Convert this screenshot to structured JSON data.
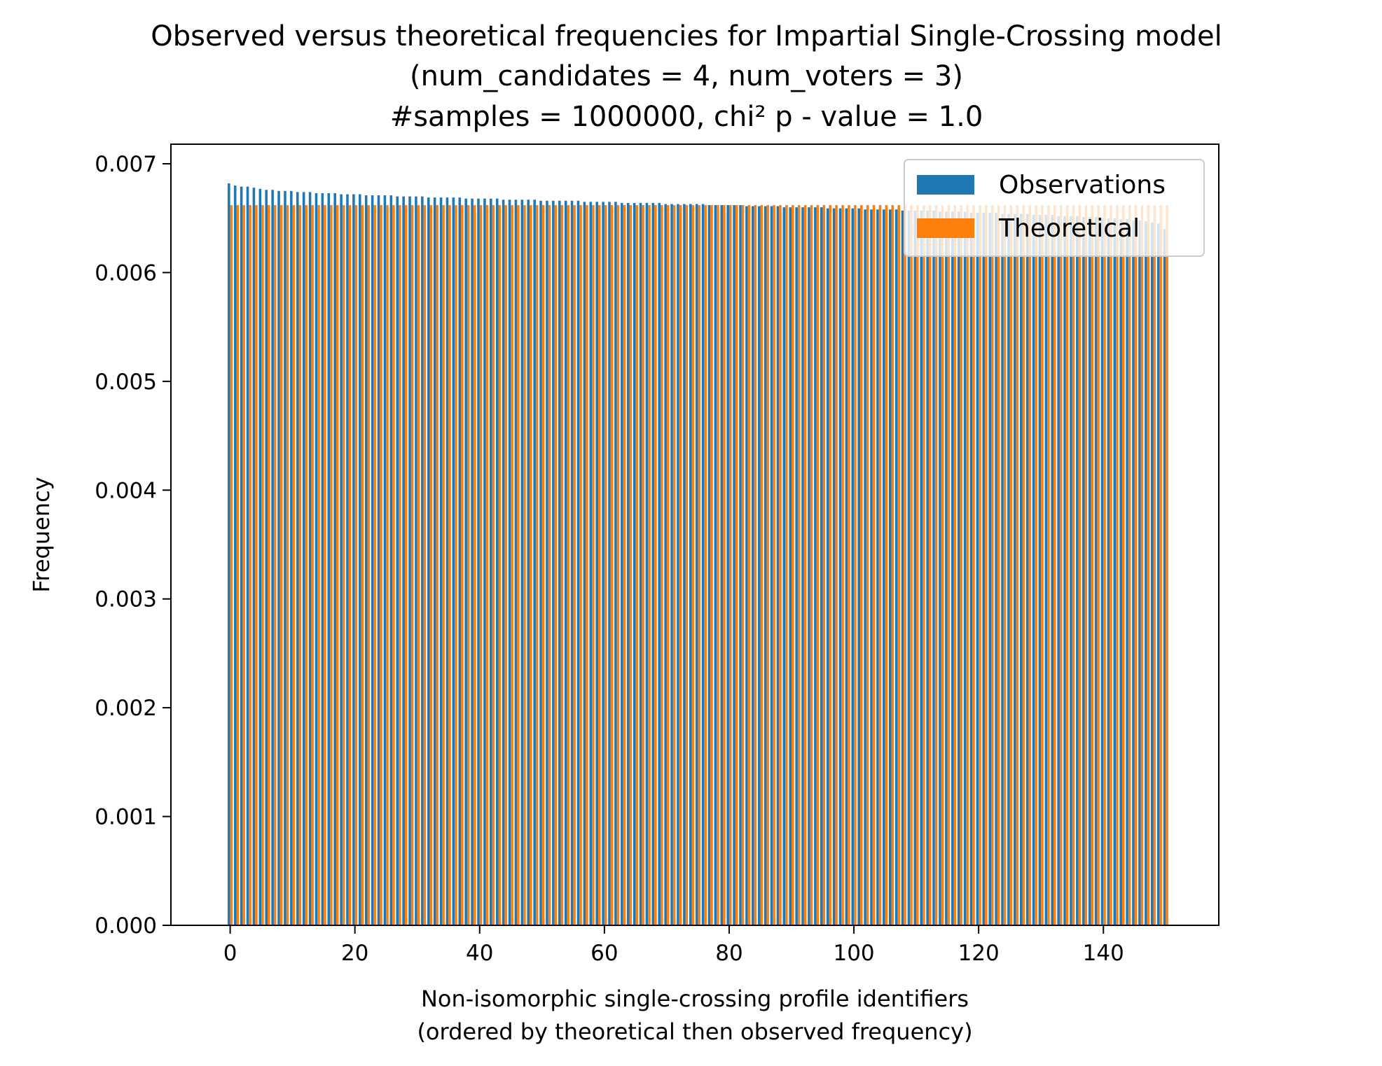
{
  "chart_data": {
    "type": "bar",
    "title_lines": [
      "Observed versus theoretical frequencies for Impartial Single-Crossing model",
      "(num_candidates = 4, num_voters = 3)",
      "#samples = 1000000, chi² p - value = 1.0"
    ],
    "xlabel_lines": [
      "Non-isomorphic single-crossing profile identifiers",
      "(ordered by theoretical then observed frequency)"
    ],
    "ylabel": "Frequency",
    "xlim": [
      -9.5,
      158.5
    ],
    "ylim": [
      0,
      0.00718
    ],
    "x_ticks": [
      0,
      20,
      40,
      60,
      80,
      100,
      120,
      140
    ],
    "x_tick_labels": [
      "0",
      "20",
      "40",
      "60",
      "80",
      "100",
      "120",
      "140"
    ],
    "y_ticks": [
      0,
      0.001,
      0.002,
      0.003,
      0.004,
      0.005,
      0.006,
      0.007
    ],
    "y_tick_labels": [
      "0.000",
      "0.001",
      "0.002",
      "0.003",
      "0.004",
      "0.005",
      "0.006",
      "0.007"
    ],
    "grid": false,
    "legend_position": "top-right",
    "num_categories": 151,
    "series": [
      {
        "name": "Observations",
        "color": "#1f77b4",
        "values": [
          0.00682,
          0.0068,
          0.00679,
          0.00679,
          0.00678,
          0.00677,
          0.00676,
          0.00676,
          0.00675,
          0.00675,
          0.00675,
          0.00674,
          0.00674,
          0.00674,
          0.00673,
          0.00673,
          0.00673,
          0.00673,
          0.00672,
          0.00672,
          0.00672,
          0.00672,
          0.00671,
          0.00671,
          0.00671,
          0.00671,
          0.00671,
          0.0067,
          0.0067,
          0.0067,
          0.0067,
          0.0067,
          0.00669,
          0.00669,
          0.00669,
          0.00669,
          0.00669,
          0.00669,
          0.00668,
          0.00668,
          0.00668,
          0.00668,
          0.00668,
          0.00668,
          0.00667,
          0.00667,
          0.00667,
          0.00667,
          0.00667,
          0.00667,
          0.00666,
          0.00666,
          0.00666,
          0.00666,
          0.00666,
          0.00666,
          0.00666,
          0.00665,
          0.00665,
          0.00665,
          0.00665,
          0.00665,
          0.00665,
          0.00664,
          0.00664,
          0.00664,
          0.00664,
          0.00664,
          0.00664,
          0.00664,
          0.00663,
          0.00663,
          0.00663,
          0.00663,
          0.00663,
          0.00663,
          0.00663,
          0.00662,
          0.00662,
          0.00662,
          0.00662,
          0.00662,
          0.00662,
          0.00661,
          0.00661,
          0.00661,
          0.00661,
          0.00661,
          0.00661,
          0.0066,
          0.0066,
          0.0066,
          0.0066,
          0.0066,
          0.0066,
          0.0066,
          0.00659,
          0.00659,
          0.00659,
          0.00659,
          0.00659,
          0.00659,
          0.00658,
          0.00658,
          0.00658,
          0.00658,
          0.00658,
          0.00658,
          0.00657,
          0.00657,
          0.00657,
          0.00657,
          0.00657,
          0.00657,
          0.00656,
          0.00656,
          0.00656,
          0.00656,
          0.00656,
          0.00655,
          0.00655,
          0.00655,
          0.00655,
          0.00655,
          0.00654,
          0.00654,
          0.00654,
          0.00654,
          0.00654,
          0.00653,
          0.00653,
          0.00653,
          0.00653,
          0.00652,
          0.00652,
          0.00652,
          0.00652,
          0.00651,
          0.00651,
          0.00651,
          0.0065,
          0.0065,
          0.0065,
          0.00649,
          0.00649,
          0.00648,
          0.00648,
          0.00647,
          0.00646,
          0.00645,
          0.0064
        ]
      },
      {
        "name": "Theoretical",
        "color": "#ff7f0e",
        "values": [
          0.00662,
          0.00662,
          0.00662,
          0.00662,
          0.00662,
          0.00662,
          0.00662,
          0.00662,
          0.00662,
          0.00662,
          0.00662,
          0.00662,
          0.00662,
          0.00662,
          0.00662,
          0.00662,
          0.00662,
          0.00662,
          0.00662,
          0.00662,
          0.00662,
          0.00662,
          0.00662,
          0.00662,
          0.00662,
          0.00662,
          0.00662,
          0.00662,
          0.00662,
          0.00662,
          0.00662,
          0.00662,
          0.00662,
          0.00662,
          0.00662,
          0.00662,
          0.00662,
          0.00662,
          0.00662,
          0.00662,
          0.00662,
          0.00662,
          0.00662,
          0.00662,
          0.00662,
          0.00662,
          0.00662,
          0.00662,
          0.00662,
          0.00662,
          0.00662,
          0.00662,
          0.00662,
          0.00662,
          0.00662,
          0.00662,
          0.00662,
          0.00662,
          0.00662,
          0.00662,
          0.00662,
          0.00662,
          0.00662,
          0.00662,
          0.00662,
          0.00662,
          0.00662,
          0.00662,
          0.00662,
          0.00662,
          0.00662,
          0.00662,
          0.00662,
          0.00662,
          0.00662,
          0.00662,
          0.00662,
          0.00662,
          0.00662,
          0.00662,
          0.00662,
          0.00662,
          0.00662,
          0.00662,
          0.00662,
          0.00662,
          0.00662,
          0.00662,
          0.00662,
          0.00662,
          0.00662,
          0.00662,
          0.00662,
          0.00662,
          0.00662,
          0.00662,
          0.00662,
          0.00662,
          0.00662,
          0.00662,
          0.00662,
          0.00662,
          0.00662,
          0.00662,
          0.00662,
          0.00662,
          0.00662,
          0.00662,
          0.00662,
          0.00662,
          0.00662,
          0.00662,
          0.00662,
          0.00662,
          0.00662,
          0.00662,
          0.00662,
          0.00662,
          0.00662,
          0.00662,
          0.00662,
          0.00662,
          0.00662,
          0.00662,
          0.00662,
          0.00662,
          0.00662,
          0.00662,
          0.00662,
          0.00662,
          0.00662,
          0.00662,
          0.00662,
          0.00662,
          0.00662,
          0.00662,
          0.00662,
          0.00662,
          0.00662,
          0.00662,
          0.00662,
          0.00662,
          0.00662,
          0.00662,
          0.00662,
          0.00662,
          0.00662,
          0.00662,
          0.00662,
          0.00662,
          0.00662
        ]
      }
    ]
  }
}
